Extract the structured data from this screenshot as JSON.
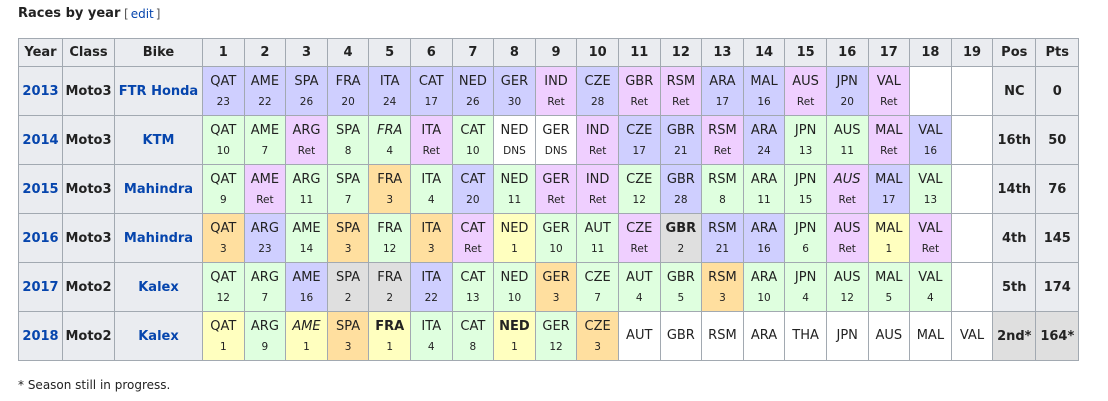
{
  "header": {
    "title": "Races by year",
    "edit_open": "[",
    "edit": "edit",
    "edit_close": "]"
  },
  "table": {
    "columns": [
      "Year",
      "Class",
      "Bike",
      "1",
      "2",
      "3",
      "4",
      "5",
      "6",
      "7",
      "8",
      "9",
      "10",
      "11",
      "12",
      "13",
      "14",
      "15",
      "16",
      "17",
      "18",
      "19",
      "Pos",
      "Pts"
    ],
    "rows": [
      {
        "year": "2013",
        "class": "Moto3",
        "bike": "FTR Honda",
        "races": [
          {
            "race": "QAT",
            "result": 23,
            "color": "#cfcfff"
          },
          {
            "race": "AME",
            "result": 22,
            "color": "#cfcfff"
          },
          {
            "race": "SPA",
            "result": 26,
            "color": "#cfcfff"
          },
          {
            "race": "FRA",
            "result": 20,
            "color": "#cfcfff"
          },
          {
            "race": "ITA",
            "result": 24,
            "color": "#cfcfff"
          },
          {
            "race": "CAT",
            "result": 17,
            "color": "#cfcfff"
          },
          {
            "race": "NED",
            "result": 26,
            "color": "#cfcfff"
          },
          {
            "race": "GER",
            "result": 30,
            "color": "#cfcfff"
          },
          {
            "race": "IND",
            "result": "Ret",
            "color": "#efcfff"
          },
          {
            "race": "CZE",
            "result": 28,
            "color": "#cfcfff"
          },
          {
            "race": "GBR",
            "result": "Ret",
            "color": "#efcfff"
          },
          {
            "race": "RSM",
            "result": "Ret",
            "color": "#efcfff"
          },
          {
            "race": "ARA",
            "result": 17,
            "color": "#cfcfff"
          },
          {
            "race": "MAL",
            "result": 16,
            "color": "#cfcfff"
          },
          {
            "race": "AUS",
            "result": "Ret",
            "color": "#efcfff"
          },
          {
            "race": "JPN",
            "result": 20,
            "color": "#cfcfff"
          },
          {
            "race": "VAL",
            "result": "Ret",
            "color": "#efcfff"
          }
        ],
        "pos": "NC",
        "pts": "0"
      },
      {
        "year": "2014",
        "class": "Moto3",
        "bike": "KTM",
        "races": [
          {
            "race": "QAT",
            "result": 10,
            "color": "#dfffdf"
          },
          {
            "race": "AME",
            "result": 7,
            "color": "#dfffdf"
          },
          {
            "race": "ARG",
            "result": "Ret",
            "color": "#efcfff"
          },
          {
            "race": "SPA",
            "result": 8,
            "color": "#dfffdf"
          },
          {
            "race": "FRA",
            "result": 4,
            "color": "#dfffdf",
            "style": "italic"
          },
          {
            "race": "ITA",
            "result": "Ret",
            "color": "#efcfff"
          },
          {
            "race": "CAT",
            "result": 10,
            "color": "#dfffdf"
          },
          {
            "race": "NED",
            "result": "DNS",
            "color": "#ffffff"
          },
          {
            "race": "GER",
            "result": "DNS",
            "color": "#ffffff"
          },
          {
            "race": "IND",
            "result": "Ret",
            "color": "#efcfff"
          },
          {
            "race": "CZE",
            "result": 17,
            "color": "#cfcfff"
          },
          {
            "race": "GBR",
            "result": 21,
            "color": "#cfcfff"
          },
          {
            "race": "RSM",
            "result": "Ret",
            "color": "#efcfff"
          },
          {
            "race": "ARA",
            "result": 24,
            "color": "#cfcfff"
          },
          {
            "race": "JPN",
            "result": 13,
            "color": "#dfffdf"
          },
          {
            "race": "AUS",
            "result": 11,
            "color": "#dfffdf"
          },
          {
            "race": "MAL",
            "result": "Ret",
            "color": "#efcfff"
          },
          {
            "race": "VAL",
            "result": 16,
            "color": "#cfcfff"
          }
        ],
        "pos": "16th",
        "pts": "50"
      },
      {
        "year": "2015",
        "class": "Moto3",
        "bike": "Mahindra",
        "races": [
          {
            "race": "QAT",
            "result": 9,
            "color": "#dfffdf"
          },
          {
            "race": "AME",
            "result": "Ret",
            "color": "#efcfff"
          },
          {
            "race": "ARG",
            "result": 11,
            "color": "#dfffdf"
          },
          {
            "race": "SPA",
            "result": 7,
            "color": "#dfffdf"
          },
          {
            "race": "FRA",
            "result": 3,
            "color": "#ffdf9f"
          },
          {
            "race": "ITA",
            "result": 4,
            "color": "#dfffdf"
          },
          {
            "race": "CAT",
            "result": 20,
            "color": "#cfcfff"
          },
          {
            "race": "NED",
            "result": 11,
            "color": "#dfffdf"
          },
          {
            "race": "GER",
            "result": "Ret",
            "color": "#efcfff"
          },
          {
            "race": "IND",
            "result": "Ret",
            "color": "#efcfff"
          },
          {
            "race": "CZE",
            "result": 12,
            "color": "#dfffdf"
          },
          {
            "race": "GBR",
            "result": 28,
            "color": "#cfcfff"
          },
          {
            "race": "RSM",
            "result": 8,
            "color": "#dfffdf"
          },
          {
            "race": "ARA",
            "result": 11,
            "color": "#dfffdf"
          },
          {
            "race": "JPN",
            "result": 15,
            "color": "#dfffdf"
          },
          {
            "race": "AUS",
            "result": "Ret",
            "color": "#efcfff",
            "style": "italic"
          },
          {
            "race": "MAL",
            "result": 17,
            "color": "#cfcfff"
          },
          {
            "race": "VAL",
            "result": 13,
            "color": "#dfffdf"
          }
        ],
        "pos": "14th",
        "pts": "76"
      },
      {
        "year": "2016",
        "class": "Moto3",
        "bike": "Mahindra",
        "races": [
          {
            "race": "QAT",
            "result": 3,
            "color": "#ffdf9f"
          },
          {
            "race": "ARG",
            "result": 23,
            "color": "#cfcfff"
          },
          {
            "race": "AME",
            "result": 14,
            "color": "#dfffdf"
          },
          {
            "race": "SPA",
            "result": 3,
            "color": "#ffdf9f"
          },
          {
            "race": "FRA",
            "result": 12,
            "color": "#dfffdf"
          },
          {
            "race": "ITA",
            "result": 3,
            "color": "#ffdf9f"
          },
          {
            "race": "CAT",
            "result": "Ret",
            "color": "#efcfff"
          },
          {
            "race": "NED",
            "result": 1,
            "color": "#ffffbf"
          },
          {
            "race": "GER",
            "result": 10,
            "color": "#dfffdf"
          },
          {
            "race": "AUT",
            "result": 11,
            "color": "#dfffdf"
          },
          {
            "race": "CZE",
            "result": "Ret",
            "color": "#efcfff"
          },
          {
            "race": "GBR",
            "result": 2,
            "color": "#dfdfdf",
            "style": "bold"
          },
          {
            "race": "RSM",
            "result": 21,
            "color": "#cfcfff"
          },
          {
            "race": "ARA",
            "result": 16,
            "color": "#cfcfff"
          },
          {
            "race": "JPN",
            "result": 6,
            "color": "#dfffdf"
          },
          {
            "race": "AUS",
            "result": "Ret",
            "color": "#efcfff"
          },
          {
            "race": "MAL",
            "result": 1,
            "color": "#ffffbf"
          },
          {
            "race": "VAL",
            "result": "Ret",
            "color": "#efcfff"
          }
        ],
        "pos": "4th",
        "pts": "145"
      },
      {
        "year": "2017",
        "class": "Moto2",
        "bike": "Kalex",
        "races": [
          {
            "race": "QAT",
            "result": 12,
            "color": "#dfffdf"
          },
          {
            "race": "ARG",
            "result": 7,
            "color": "#dfffdf"
          },
          {
            "race": "AME",
            "result": 16,
            "color": "#cfcfff"
          },
          {
            "race": "SPA",
            "result": 2,
            "color": "#dfdfdf"
          },
          {
            "race": "FRA",
            "result": 2,
            "color": "#dfdfdf"
          },
          {
            "race": "ITA",
            "result": 22,
            "color": "#cfcfff"
          },
          {
            "race": "CAT",
            "result": 13,
            "color": "#dfffdf"
          },
          {
            "race": "NED",
            "result": 10,
            "color": "#dfffdf"
          },
          {
            "race": "GER",
            "result": 3,
            "color": "#ffdf9f"
          },
          {
            "race": "CZE",
            "result": 7,
            "color": "#dfffdf"
          },
          {
            "race": "AUT",
            "result": 4,
            "color": "#dfffdf"
          },
          {
            "race": "GBR",
            "result": 5,
            "color": "#dfffdf"
          },
          {
            "race": "RSM",
            "result": 3,
            "color": "#ffdf9f"
          },
          {
            "race": "ARA",
            "result": 10,
            "color": "#dfffdf"
          },
          {
            "race": "JPN",
            "result": 4,
            "color": "#dfffdf"
          },
          {
            "race": "AUS",
            "result": 12,
            "color": "#dfffdf"
          },
          {
            "race": "MAL",
            "result": 5,
            "color": "#dfffdf"
          },
          {
            "race": "VAL",
            "result": 4,
            "color": "#dfffdf"
          }
        ],
        "pos": "5th",
        "pts": "174"
      },
      {
        "year": "2018",
        "class": "Moto2",
        "bike": "Kalex",
        "races": [
          {
            "race": "QAT",
            "result": 1,
            "color": "#ffffbf"
          },
          {
            "race": "ARG",
            "result": 9,
            "color": "#dfffdf"
          },
          {
            "race": "AME",
            "result": 1,
            "color": "#ffffbf",
            "style": "italic"
          },
          {
            "race": "SPA",
            "result": 3,
            "color": "#ffdf9f"
          },
          {
            "race": "FRA",
            "result": 1,
            "color": "#ffffbf",
            "style": "bold"
          },
          {
            "race": "ITA",
            "result": 4,
            "color": "#dfffdf"
          },
          {
            "race": "CAT",
            "result": 8,
            "color": "#dfffdf"
          },
          {
            "race": "NED",
            "result": 1,
            "color": "#ffffbf",
            "style": "bold"
          },
          {
            "race": "GER",
            "result": 12,
            "color": "#dfffdf"
          },
          {
            "race": "CZE",
            "result": 3,
            "color": "#ffdf9f"
          },
          {
            "race": "AUT"
          },
          {
            "race": "GBR"
          },
          {
            "race": "RSM"
          },
          {
            "race": "ARA"
          },
          {
            "race": "THA"
          },
          {
            "race": "JPN"
          },
          {
            "race": "AUS"
          },
          {
            "race": "MAL"
          },
          {
            "race": "VAL"
          }
        ],
        "pos": "2nd*",
        "pts": "164*",
        "pos_color": "#dfdfdf"
      }
    ]
  },
  "footnote": "* Season still in progress."
}
